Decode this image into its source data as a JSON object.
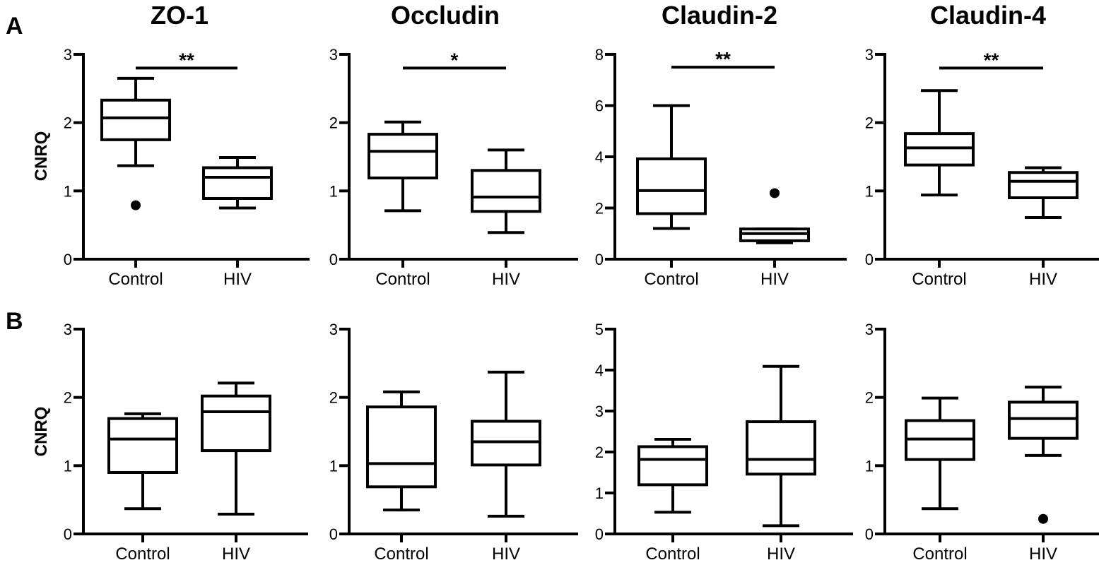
{
  "figure": {
    "column_titles": [
      "ZO-1",
      "Occludin",
      "Claudin-2",
      "Claudin-4"
    ],
    "row_labels": [
      "A",
      "B"
    ],
    "ylabel": "CNRQ"
  },
  "chart_data": [
    {
      "type": "box",
      "panel": "A",
      "title": "ZO-1",
      "ylabel": "CNRQ",
      "ylim": [
        0,
        3
      ],
      "yticks": [
        0,
        1,
        2,
        3
      ],
      "categories": [
        "Control",
        "HIV"
      ],
      "boxes": [
        {
          "category": "Control",
          "whisker_low": 1.37,
          "q1": 1.75,
          "median": 2.07,
          "q3": 2.33,
          "whisker_high": 2.65,
          "outliers": [
            0.79
          ]
        },
        {
          "category": "HIV",
          "whisker_low": 0.75,
          "q1": 0.89,
          "median": 1.2,
          "q3": 1.34,
          "whisker_high": 1.49,
          "outliers": []
        }
      ],
      "significance": {
        "label": "**",
        "y": 2.8
      }
    },
    {
      "type": "box",
      "panel": "A",
      "title": "Occludin",
      "ylim": [
        0,
        3
      ],
      "yticks": [
        0,
        1,
        2,
        3
      ],
      "categories": [
        "Control",
        "HIV"
      ],
      "boxes": [
        {
          "category": "Control",
          "whisker_low": 0.71,
          "q1": 1.19,
          "median": 1.58,
          "q3": 1.83,
          "whisker_high": 2.01,
          "outliers": []
        },
        {
          "category": "HIV",
          "whisker_low": 0.39,
          "q1": 0.7,
          "median": 0.91,
          "q3": 1.3,
          "whisker_high": 1.6,
          "outliers": []
        }
      ],
      "significance": {
        "label": "*",
        "y": 2.8
      }
    },
    {
      "type": "box",
      "panel": "A",
      "title": "Claudin-2",
      "ylim": [
        0,
        8
      ],
      "yticks": [
        0,
        2,
        4,
        6,
        8
      ],
      "categories": [
        "Control",
        "HIV"
      ],
      "boxes": [
        {
          "category": "Control",
          "whisker_low": 1.2,
          "q1": 1.78,
          "median": 2.68,
          "q3": 3.92,
          "whisker_high": 6.0,
          "outliers": []
        },
        {
          "category": "HIV",
          "whisker_low": 0.64,
          "q1": 0.72,
          "median": 1.0,
          "q3": 1.18,
          "whisker_high": 1.18,
          "outliers": [
            2.58
          ]
        }
      ],
      "significance": {
        "label": "**",
        "y": 7.5
      }
    },
    {
      "type": "box",
      "panel": "A",
      "title": "Claudin-4",
      "ylim": [
        0,
        3
      ],
      "yticks": [
        0,
        1,
        2,
        3
      ],
      "categories": [
        "Control",
        "HIV"
      ],
      "boxes": [
        {
          "category": "Control",
          "whisker_low": 0.94,
          "q1": 1.38,
          "median": 1.63,
          "q3": 1.84,
          "whisker_high": 2.47,
          "outliers": []
        },
        {
          "category": "HIV",
          "whisker_low": 0.61,
          "q1": 0.9,
          "median": 1.14,
          "q3": 1.27,
          "whisker_high": 1.34,
          "outliers": []
        }
      ],
      "significance": {
        "label": "**",
        "y": 2.8
      }
    },
    {
      "type": "box",
      "panel": "B",
      "title": "ZO-1",
      "ylabel": "CNRQ",
      "ylim": [
        0,
        3
      ],
      "yticks": [
        0,
        1,
        2,
        3
      ],
      "categories": [
        "Control",
        "HIV"
      ],
      "boxes": [
        {
          "category": "Control",
          "whisker_low": 0.37,
          "q1": 0.9,
          "median": 1.39,
          "q3": 1.69,
          "whisker_high": 1.76,
          "outliers": []
        },
        {
          "category": "HIV",
          "whisker_low": 0.29,
          "q1": 1.22,
          "median": 1.79,
          "q3": 2.02,
          "whisker_high": 2.21,
          "outliers": []
        }
      ],
      "significance": null
    },
    {
      "type": "box",
      "panel": "B",
      "title": "Occludin",
      "ylim": [
        0,
        3
      ],
      "yticks": [
        0,
        1,
        2,
        3
      ],
      "categories": [
        "Control",
        "HIV"
      ],
      "boxes": [
        {
          "category": "Control",
          "whisker_low": 0.35,
          "q1": 0.69,
          "median": 1.03,
          "q3": 1.86,
          "whisker_high": 2.08,
          "outliers": []
        },
        {
          "category": "HIV",
          "whisker_low": 0.26,
          "q1": 1.01,
          "median": 1.35,
          "q3": 1.65,
          "whisker_high": 2.37,
          "outliers": []
        }
      ],
      "significance": null
    },
    {
      "type": "box",
      "panel": "B",
      "title": "Claudin-2",
      "ylim": [
        0,
        5
      ],
      "yticks": [
        0,
        1,
        2,
        3,
        4,
        5
      ],
      "categories": [
        "Control",
        "HIV"
      ],
      "boxes": [
        {
          "category": "Control",
          "whisker_low": 0.53,
          "q1": 1.2,
          "median": 1.82,
          "q3": 2.13,
          "whisker_high": 2.31,
          "outliers": []
        },
        {
          "category": "HIV",
          "whisker_low": 0.2,
          "q1": 1.46,
          "median": 1.82,
          "q3": 2.74,
          "whisker_high": 4.09,
          "outliers": []
        }
      ],
      "significance": null
    },
    {
      "type": "box",
      "panel": "B",
      "title": "Claudin-4",
      "ylim": [
        0,
        3
      ],
      "yticks": [
        0,
        1,
        2,
        3
      ],
      "categories": [
        "Control",
        "HIV"
      ],
      "boxes": [
        {
          "category": "Control",
          "whisker_low": 0.37,
          "q1": 1.09,
          "median": 1.39,
          "q3": 1.66,
          "whisker_high": 1.99,
          "outliers": []
        },
        {
          "category": "HIV",
          "whisker_low": 1.15,
          "q1": 1.4,
          "median": 1.69,
          "q3": 1.93,
          "whisker_high": 2.15,
          "outliers": [
            0.22
          ]
        }
      ],
      "significance": null
    }
  ]
}
